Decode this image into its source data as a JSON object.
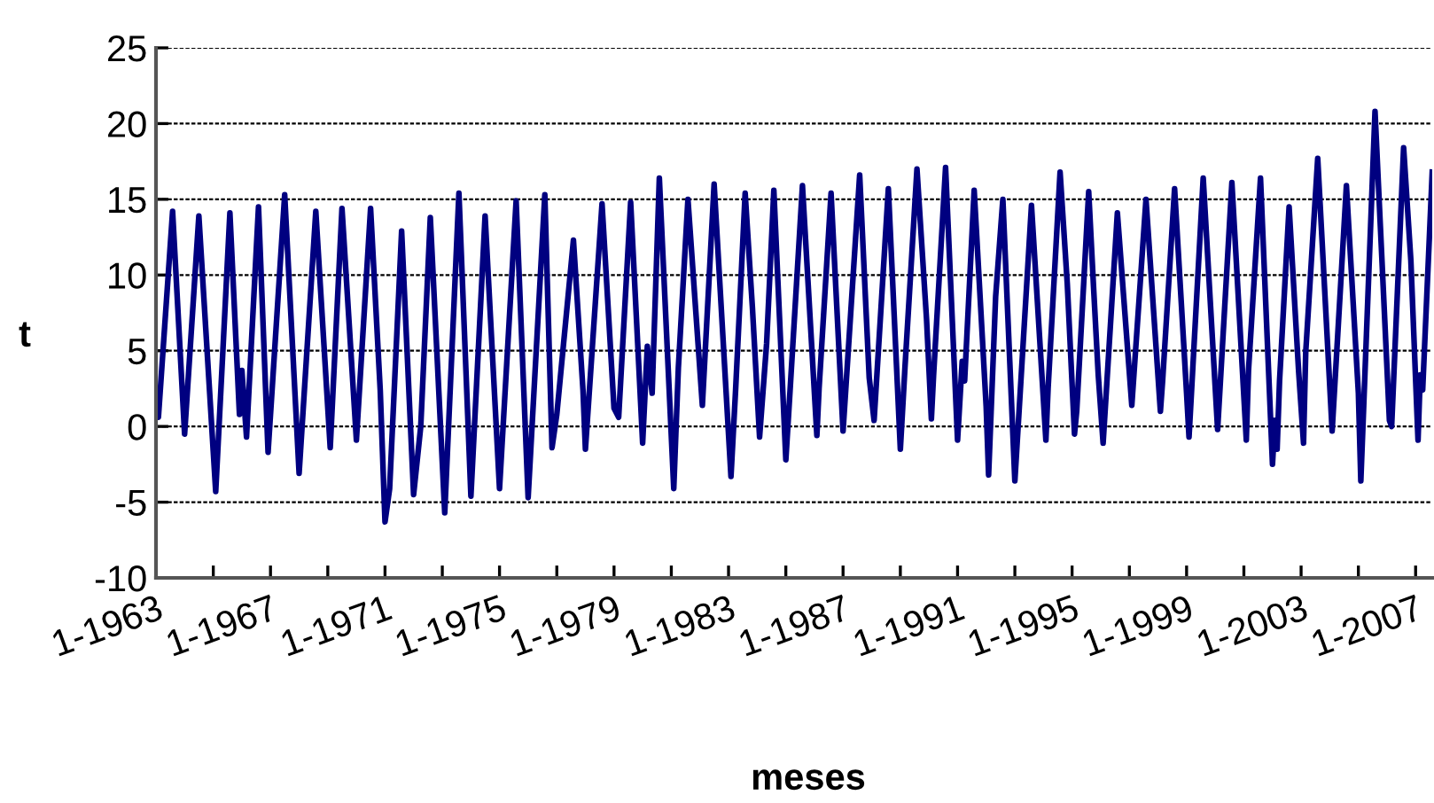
{
  "chart_data": {
    "type": "line",
    "xlabel": "meses",
    "ylabel": "t",
    "x": [
      "1963-01",
      "1963-02",
      "1963-08",
      "1964-01",
      "1964-07",
      "1965-02",
      "1965-08",
      "1965-12",
      "1966-01",
      "1966-03",
      "1966-08",
      "1966-12",
      "1967-07",
      "1968-01",
      "1968-08",
      "1969-02",
      "1969-07",
      "1970-01",
      "1970-07",
      "1970-11",
      "1971-01",
      "1971-03",
      "1971-08",
      "1972-01",
      "1972-04",
      "1972-08",
      "1973-02",
      "1973-08",
      "1974-01",
      "1974-07",
      "1975-01",
      "1975-08",
      "1976-01",
      "1976-08",
      "1976-11",
      "1977-01",
      "1977-08",
      "1977-12",
      "1978-01",
      "1978-08",
      "1979-01",
      "1979-03",
      "1979-08",
      "1980-01",
      "1980-03",
      "1980-05",
      "1980-08",
      "1981-02",
      "1981-04",
      "1981-08",
      "1982-02",
      "1982-07",
      "1983-02",
      "1983-04",
      "1983-08",
      "1983-11",
      "1984-02",
      "1984-05",
      "1984-08",
      "1985-01",
      "1985-03",
      "1985-08",
      "1986-02",
      "1986-03",
      "1986-08",
      "1987-01",
      "1987-08",
      "1987-12",
      "1988-02",
      "1988-08",
      "1989-01",
      "1989-03",
      "1989-08",
      "1989-12",
      "1990-02",
      "1990-03",
      "1990-08",
      "1991-01",
      "1991-03",
      "1991-04",
      "1991-08",
      "1992-01",
      "1992-02",
      "1992-05",
      "1992-08",
      "1993-01",
      "1993-08",
      "1994-02",
      "1994-03",
      "1994-08",
      "1994-11",
      "1995-02",
      "1995-03",
      "1995-08",
      "1995-10",
      "1995-12",
      "1996-02",
      "1996-08",
      "1997-02",
      "1997-08",
      "1998-02",
      "1998-03",
      "1998-08",
      "1999-01",
      "1999-02",
      "1999-08",
      "2000-02",
      "2000-08",
      "2001-02",
      "2001-03",
      "2001-08",
      "2002-01",
      "2002-02",
      "2002-03",
      "2002-04",
      "2002-08",
      "2002-12",
      "2003-02",
      "2003-03",
      "2003-08",
      "2004-02",
      "2004-08",
      "2005-01",
      "2005-02",
      "2005-08",
      "2006-02",
      "2006-03",
      "2006-08",
      "2006-11",
      "2007-02",
      "2007-03",
      "2007-04",
      "2007-08"
    ],
    "series": [
      {
        "color": "#000080",
        "values": [
          1.8,
          0.6,
          14.2,
          -0.5,
          13.9,
          -4.3,
          14.1,
          0.8,
          3.7,
          -0.7,
          14.5,
          -1.7,
          15.3,
          -3.1,
          14.2,
          -1.4,
          14.4,
          -0.9,
          14.4,
          2.4,
          -6.3,
          -4.1,
          12.9,
          -4.5,
          0.0,
          13.8,
          -5.7,
          15.4,
          -4.6,
          13.9,
          -4.1,
          14.9,
          -4.7,
          15.3,
          -1.4,
          0.8,
          12.3,
          2.4,
          -1.5,
          14.7,
          1.2,
          0.6,
          14.8,
          -1.1,
          5.3,
          2.2,
          16.4,
          -4.1,
          3.9,
          15.0,
          1.4,
          16.0,
          -3.3,
          2.4,
          15.4,
          7.9,
          -0.7,
          5.5,
          15.6,
          -2.2,
          2.8,
          15.9,
          -0.6,
          2.5,
          15.4,
          -0.3,
          16.6,
          3.2,
          0.4,
          15.7,
          -1.5,
          3.9,
          17.0,
          7.1,
          0.5,
          3.4,
          17.1,
          -0.9,
          4.3,
          3.0,
          15.6,
          1.3,
          -3.2,
          8.6,
          15.0,
          -3.6,
          14.6,
          -0.9,
          2.5,
          16.8,
          9.4,
          -0.5,
          1.0,
          15.5,
          9.3,
          3.4,
          -1.1,
          14.1,
          1.4,
          15.0,
          1.0,
          3.0,
          15.7,
          2.2,
          -0.7,
          16.4,
          -0.2,
          16.1,
          -0.9,
          3.7,
          16.4,
          -2.5,
          0.4,
          -1.5,
          3.0,
          14.5,
          3.6,
          -1.1,
          4.9,
          17.7,
          -0.3,
          15.9,
          2.2,
          -3.6,
          20.8,
          0.4,
          0.0,
          18.4,
          11.0,
          -0.9,
          3.4,
          2.4,
          16.8
        ]
      }
    ],
    "xlim": [
      "1963-01",
      "2007-08"
    ],
    "xticks": [
      {
        "value": "1963-01",
        "label": "1-1963"
      },
      {
        "value": "1965-01",
        "label": null
      },
      {
        "value": "1967-01",
        "label": "1-1967"
      },
      {
        "value": "1969-01",
        "label": null
      },
      {
        "value": "1971-01",
        "label": "1-1971"
      },
      {
        "value": "1973-01",
        "label": null
      },
      {
        "value": "1975-01",
        "label": "1-1975"
      },
      {
        "value": "1977-01",
        "label": null
      },
      {
        "value": "1979-01",
        "label": "1-1979"
      },
      {
        "value": "1981-01",
        "label": null
      },
      {
        "value": "1983-01",
        "label": "1-1983"
      },
      {
        "value": "1985-01",
        "label": null
      },
      {
        "value": "1987-01",
        "label": "1-1987"
      },
      {
        "value": "1989-01",
        "label": null
      },
      {
        "value": "1991-01",
        "label": "1-1991"
      },
      {
        "value": "1993-01",
        "label": null
      },
      {
        "value": "1995-01",
        "label": "1-1995"
      },
      {
        "value": "1997-01",
        "label": null
      },
      {
        "value": "1999-01",
        "label": "1-1999"
      },
      {
        "value": "2001-01",
        "label": null
      },
      {
        "value": "2003-01",
        "label": "1-2003"
      },
      {
        "value": "2005-01",
        "label": null
      },
      {
        "value": "2007-01",
        "label": "1-2007"
      }
    ],
    "ylim": [
      -10,
      25
    ],
    "yticks": [
      -10,
      -5,
      0,
      5,
      10,
      15,
      20,
      25
    ],
    "grid": "y",
    "marker": "none",
    "line_style": "solid"
  }
}
